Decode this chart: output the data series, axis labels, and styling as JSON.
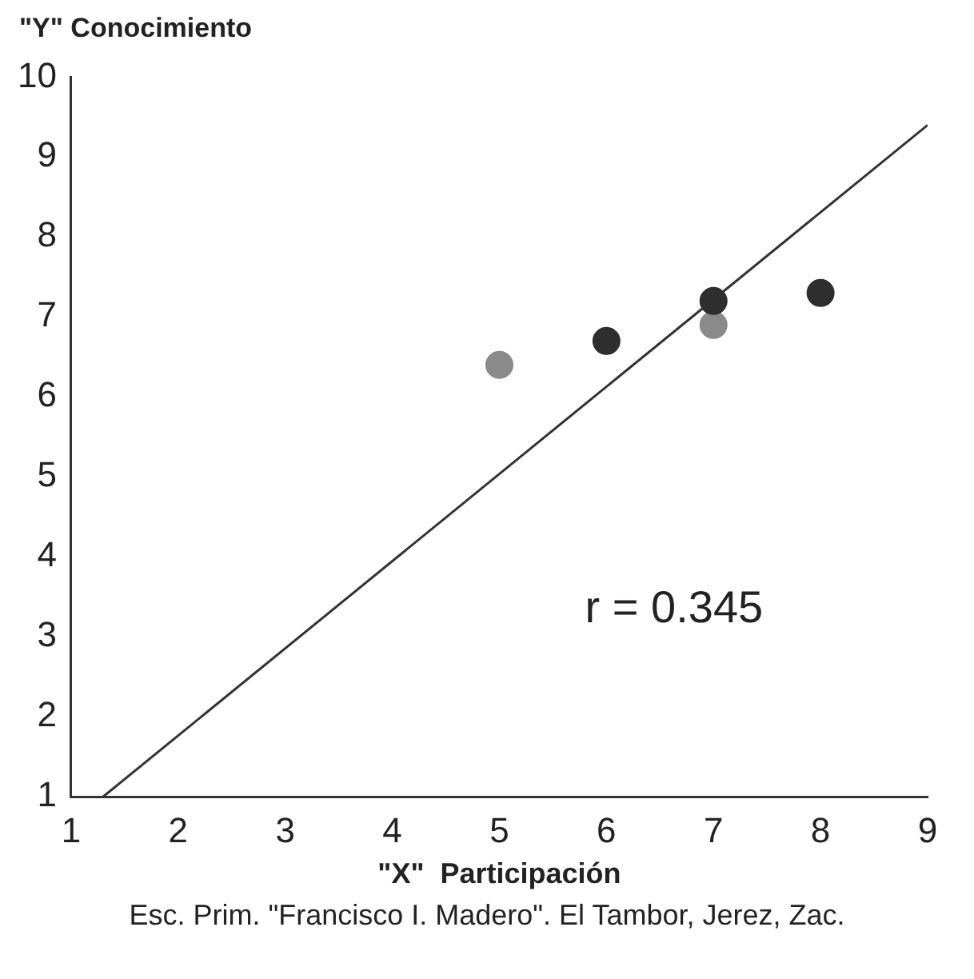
{
  "chart_data": {
    "type": "scatter",
    "xlabel": "\"X\"  Participación",
    "ylabel": "\"Y\"  Conocimiento",
    "xlim": [
      1,
      9
    ],
    "ylim": [
      1,
      10
    ],
    "xticks": [
      1,
      2,
      3,
      4,
      5,
      6,
      7,
      8,
      9
    ],
    "yticks": [
      1,
      2,
      3,
      4,
      5,
      6,
      7,
      8,
      9,
      10
    ],
    "grid": false,
    "legend": false,
    "marker": "circle",
    "series": [
      {
        "type": "scatter",
        "color": "#2e2e2e",
        "x": [
          6,
          7,
          8
        ],
        "values": [
          6.7,
          7.2,
          7.3
        ]
      },
      {
        "type": "scatter",
        "color": "#8a8a8a",
        "x": [
          5,
          7
        ],
        "values": [
          6.4,
          6.9
        ]
      },
      {
        "type": "line",
        "color": "#333333",
        "x": [
          1.3,
          9
        ],
        "values": [
          1,
          9.4
        ],
        "marker": "none",
        "line_style": "solid"
      }
    ],
    "annotations": [
      "r = 0.345",
      "Esc. Prim. \"Francisco I. Madero\". El Tambor, Jerez, Zac."
    ]
  }
}
